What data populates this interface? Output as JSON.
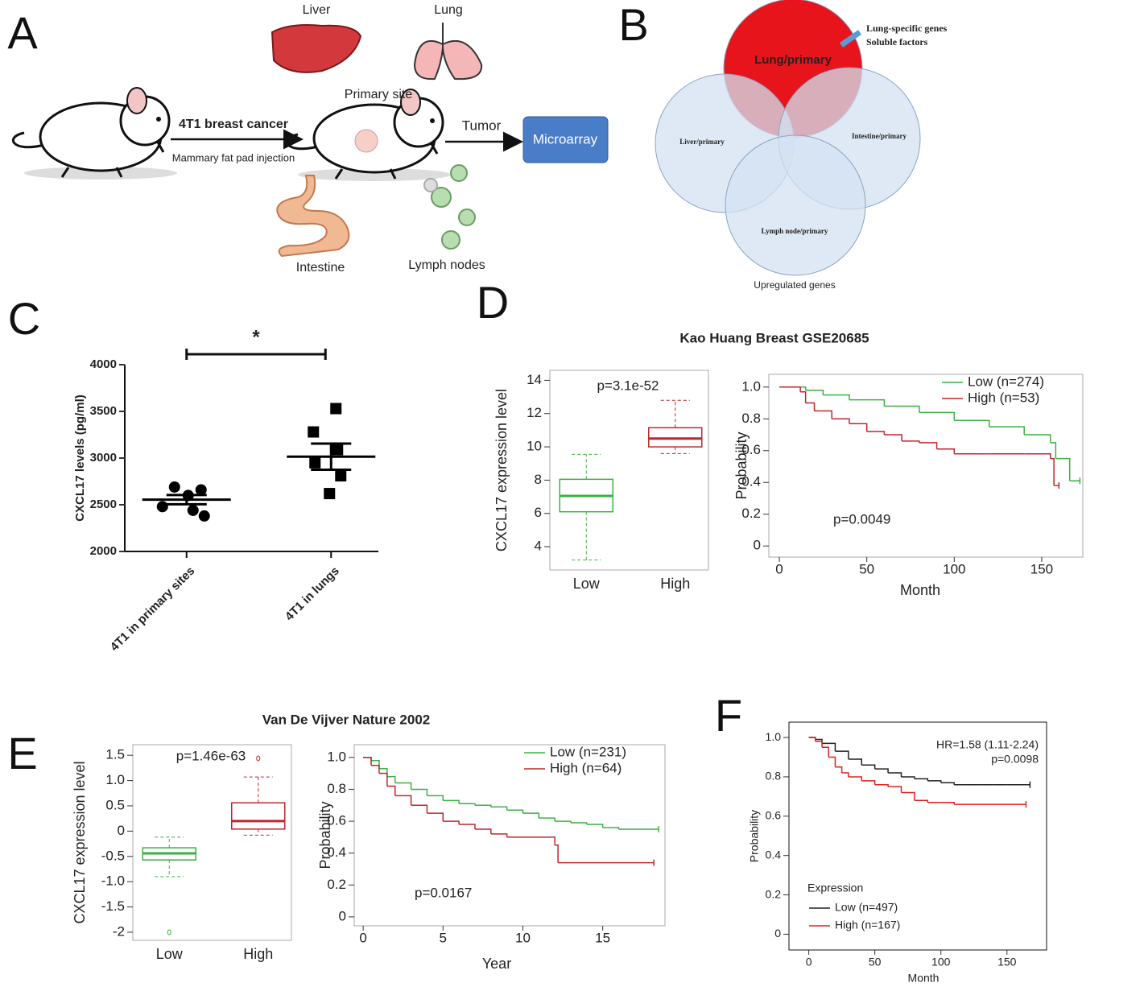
{
  "panel_a": {
    "label": "A",
    "organs_top": [
      "Liver",
      "Lung"
    ],
    "primary_site": "Primary site",
    "injection_title": "4T1 breast cancer",
    "injection_note": "Mammary fat pad injection",
    "tumor": "Tumor",
    "assay": "Microarray",
    "organs_bottom": [
      "Intestine",
      "Lymph nodes"
    ]
  },
  "panel_b": {
    "label": "B",
    "sets": [
      "Lung/primary",
      "Liver/primary",
      "Intestine/primary",
      "Lymph node/primary"
    ],
    "annotation": [
      "Lung-specific genes",
      "Soluble factors"
    ],
    "caption": "Upregulated genes"
  },
  "chart_data": [
    {
      "type": "dot",
      "panel": "C",
      "significance": "*",
      "ylabel": "CXCL17 levels (pg/ml)",
      "categories": [
        "4T1 in primary sites",
        "4T1 in lungs"
      ],
      "markers": [
        "circle",
        "square"
      ],
      "color": "#000000",
      "values": [
        [
          2690,
          2660,
          2600,
          2480,
          2440,
          2380
        ],
        [
          3530,
          3280,
          3090,
          2950,
          2810,
          2620
        ]
      ],
      "means": [
        2555,
        3015
      ],
      "sem": [
        50,
        140
      ],
      "ylim": [
        2000,
        4000
      ],
      "yticks": [
        2000,
        2500,
        3000,
        3500,
        4000
      ]
    },
    {
      "type": "box",
      "panel": "D",
      "title": "Kao Huang Breast GSE20685",
      "annotation": "p=3.1e-52",
      "ylabel": "CXCL17 expression level",
      "categories": [
        "Low",
        "High"
      ],
      "colors": [
        "#3cb043",
        "#c0272d"
      ],
      "boxes": [
        {
          "min": 3.2,
          "q1": 6.1,
          "median": 7.05,
          "q3": 8.05,
          "max": 9.55,
          "outliers": []
        },
        {
          "min": 9.6,
          "q1": 10,
          "median": 10.5,
          "q3": 11.15,
          "max": 12.8,
          "outliers": []
        }
      ],
      "ylim": [
        2.6,
        14.6
      ],
      "yticks": [
        4,
        6,
        8,
        10,
        12,
        14
      ]
    },
    {
      "type": "km",
      "xlabel": "Month",
      "ylabel": "Probability",
      "annotation": "p=0.0049",
      "legend": "upper right",
      "series": [
        {
          "name": "Low (n=274)",
          "color": "#3cb043",
          "x": [
            0,
            15,
            25,
            40,
            60,
            80,
            100,
            120,
            140,
            155,
            158,
            166,
            170
          ],
          "values": [
            1,
            0.98,
            0.95,
            0.92,
            0.88,
            0.84,
            0.79,
            0.75,
            0.7,
            0.65,
            0.55,
            0.41,
            0.41
          ]
        },
        {
          "name": "High (n=53)",
          "color": "#c0272d",
          "x": [
            0,
            12,
            15,
            20,
            30,
            40,
            50,
            60,
            70,
            80,
            90,
            100,
            120,
            140,
            155,
            157,
            158
          ],
          "values": [
            1,
            0.97,
            0.9,
            0.85,
            0.8,
            0.77,
            0.72,
            0.7,
            0.66,
            0.65,
            0.61,
            0.58,
            0.58,
            0.58,
            0.55,
            0.38,
            0.38
          ]
        }
      ],
      "xlim": [
        -6,
        173.5
      ],
      "xticks": [
        0,
        50,
        100,
        150
      ],
      "ylim": [
        -0.07,
        1.08
      ],
      "yticks": [
        0,
        0.2,
        0.4,
        0.6,
        0.8,
        {
          "value": 1,
          "label": "1.0"
        }
      ]
    },
    {
      "type": "box",
      "panel": "E",
      "title": "Van De Vijver Nature 2002",
      "annotation": "p=1.46e-63",
      "ylabel": "CXCL17 expression level",
      "categories": [
        "Low",
        "High"
      ],
      "colors": [
        "#3cb043",
        "#c0272d"
      ],
      "boxes": [
        {
          "min": -0.9,
          "q1": -0.57,
          "median": -0.44,
          "q3": -0.33,
          "max": -0.12,
          "outliers": [
            -2
          ]
        },
        {
          "min": -0.08,
          "q1": 0.04,
          "median": 0.2,
          "q3": 0.56,
          "max": 1.07,
          "outliers": [
            1.44
          ]
        }
      ],
      "ylim": [
        -2.16,
        1.71
      ],
      "yticks": [
        -2,
        -1.5,
        {
          "value": -1,
          "label": "-1.0"
        },
        -0.5,
        0,
        0.5,
        {
          "value": 1,
          "label": "1.0"
        },
        1.5
      ]
    },
    {
      "type": "km",
      "xlabel": "Year",
      "ylabel": "Probability",
      "annotation": "p=0.0167",
      "legend": "upper right",
      "series": [
        {
          "name": "Low (n=231)",
          "color": "#3cb043",
          "x": [
            0,
            0.5,
            1,
            1.5,
            2,
            3,
            4,
            5,
            6,
            7,
            8,
            9,
            10,
            11,
            12,
            13,
            14,
            15,
            16,
            18.3
          ],
          "values": [
            1,
            0.98,
            0.93,
            0.88,
            0.84,
            0.8,
            0.76,
            0.73,
            0.71,
            0.7,
            0.69,
            0.67,
            0.65,
            0.62,
            0.6,
            0.59,
            0.58,
            0.56,
            0.55,
            0.55
          ]
        },
        {
          "name": "High (n=64)",
          "color": "#c0272d",
          "x": [
            0,
            0.5,
            1,
            1.5,
            2,
            3,
            4,
            5,
            6,
            7,
            8,
            9,
            10,
            11,
            12,
            12.2,
            18
          ],
          "values": [
            1,
            0.95,
            0.9,
            0.82,
            0.76,
            0.7,
            0.65,
            0.6,
            0.58,
            0.55,
            0.52,
            0.5,
            0.5,
            0.5,
            0.45,
            0.34,
            0.34
          ]
        }
      ],
      "xlim": [
        -0.56,
        18.9
      ],
      "xticks": [
        0,
        5,
        10,
        15
      ],
      "ylim": [
        -0.056,
        1.08
      ],
      "yticks": [
        0,
        0.2,
        0.4,
        0.6,
        0.8,
        {
          "value": 1,
          "label": "1.0"
        }
      ]
    },
    {
      "type": "km",
      "panel": "F",
      "xlabel": "Month",
      "ylabel": "Probability",
      "annotation": [
        "HR=1.58 (1.11-2.24)",
        "p=0.0098"
      ],
      "legend": "lower left",
      "legend_title": "Expression",
      "series": [
        {
          "name": "Low (n=497)",
          "color": "#222222",
          "x": [
            0,
            5,
            10,
            20,
            30,
            40,
            50,
            60,
            70,
            80,
            90,
            100,
            110,
            120,
            130,
            140,
            150,
            165
          ],
          "values": [
            1,
            0.99,
            0.97,
            0.93,
            0.89,
            0.86,
            0.84,
            0.82,
            0.8,
            0.79,
            0.78,
            0.77,
            0.76,
            0.76,
            0.76,
            0.76,
            0.76,
            0.76
          ]
        },
        {
          "name": "High (n=167)",
          "color": "#e02020",
          "x": [
            0,
            5,
            10,
            15,
            20,
            25,
            30,
            40,
            50,
            60,
            70,
            80,
            90,
            100,
            110,
            120,
            140,
            162
          ],
          "values": [
            1,
            0.98,
            0.95,
            0.9,
            0.85,
            0.82,
            0.8,
            0.78,
            0.76,
            0.75,
            0.72,
            0.68,
            0.67,
            0.67,
            0.66,
            0.66,
            0.66,
            0.66
          ]
        }
      ],
      "xlim": [
        -15,
        180
      ],
      "xticks": [
        0,
        50,
        100,
        150
      ],
      "ylim": [
        -0.08,
        1.078
      ],
      "yticks": [
        0,
        0.2,
        0.4,
        0.6,
        0.8,
        {
          "value": 1,
          "label": "1.0"
        }
      ]
    }
  ]
}
